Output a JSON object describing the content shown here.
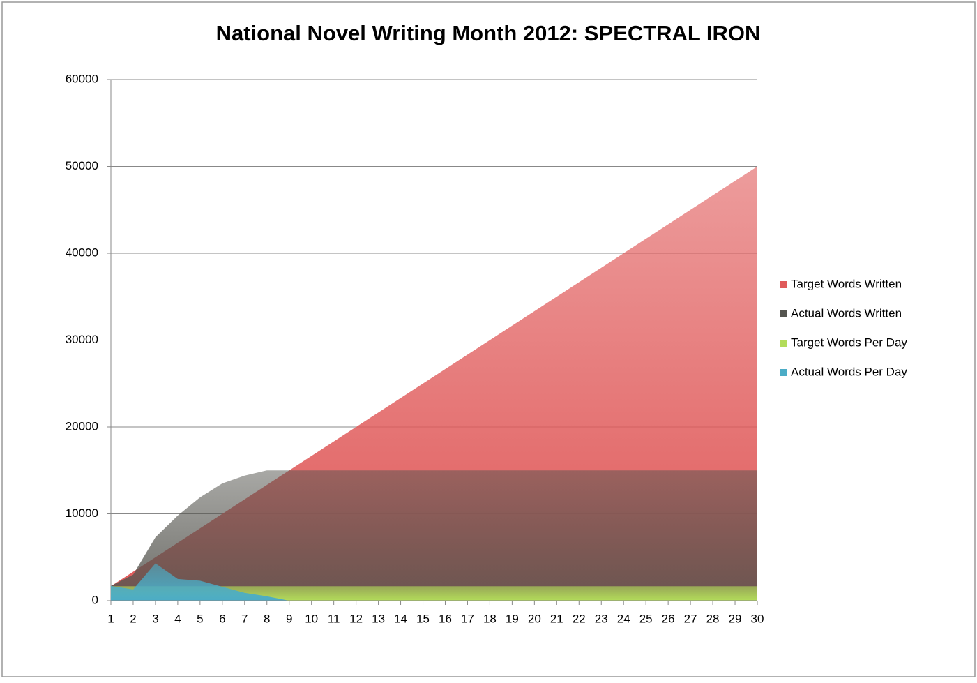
{
  "chart_data": {
    "type": "area",
    "title": "National Novel Writing Month 2012: SPECTRAL IRON",
    "x": [
      1,
      2,
      3,
      4,
      5,
      6,
      7,
      8,
      9,
      10,
      11,
      12,
      13,
      14,
      15,
      16,
      17,
      18,
      19,
      20,
      21,
      22,
      23,
      24,
      25,
      26,
      27,
      28,
      29,
      30
    ],
    "xlim": [
      1,
      30
    ],
    "xticks": [
      1,
      2,
      3,
      4,
      5,
      6,
      7,
      8,
      9,
      10,
      11,
      12,
      13,
      14,
      15,
      16,
      17,
      18,
      19,
      20,
      21,
      22,
      23,
      24,
      25,
      26,
      27,
      28,
      29,
      30
    ],
    "ylim": [
      0,
      60000
    ],
    "yticks": [
      0,
      10000,
      20000,
      30000,
      40000,
      50000,
      60000
    ],
    "grid": true,
    "legend": "right",
    "series": [
      {
        "name": "Target Words Written",
        "color": "#e05a5a",
        "values": [
          1667,
          3333,
          5000,
          6667,
          8333,
          10000,
          11667,
          13333,
          15000,
          16667,
          18333,
          20000,
          21667,
          23333,
          25000,
          26667,
          28333,
          30000,
          31667,
          33333,
          35000,
          36667,
          38333,
          40000,
          41667,
          43333,
          45000,
          46667,
          48333,
          50000
        ]
      },
      {
        "name": "Actual Words Written",
        "color": "#55554f",
        "values": [
          1700,
          3000,
          7300,
          9800,
          11900,
          13500,
          14400,
          15000,
          15000,
          15000,
          15000,
          15000,
          15000,
          15000,
          15000,
          15000,
          15000,
          15000,
          15000,
          15000,
          15000,
          15000,
          15000,
          15000,
          15000,
          15000,
          15000,
          15000,
          15000,
          15000
        ]
      },
      {
        "name": "Target Words Per Day",
        "color": "#b3dc5a",
        "values": [
          1667,
          1667,
          1667,
          1667,
          1667,
          1667,
          1667,
          1667,
          1667,
          1667,
          1667,
          1667,
          1667,
          1667,
          1667,
          1667,
          1667,
          1667,
          1667,
          1667,
          1667,
          1667,
          1667,
          1667,
          1667,
          1667,
          1667,
          1667,
          1667,
          1667
        ]
      },
      {
        "name": "Actual Words Per Day",
        "color": "#4bacc6",
        "values": [
          1700,
          1300,
          4300,
          2500,
          2300,
          1600,
          900,
          500,
          0,
          0,
          0,
          0,
          0,
          0,
          0,
          0,
          0,
          0,
          0,
          0,
          0,
          0,
          0,
          0,
          0,
          0,
          0,
          0,
          0,
          0
        ]
      }
    ]
  }
}
